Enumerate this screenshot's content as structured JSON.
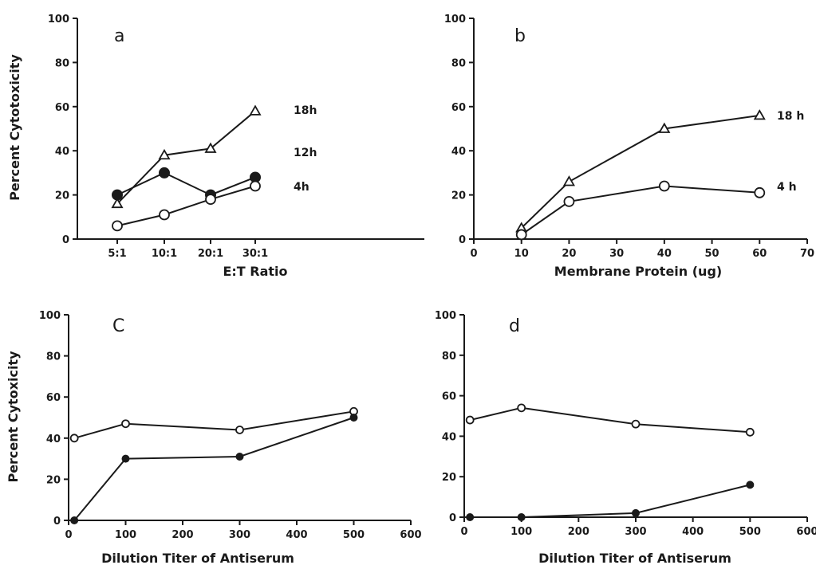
{
  "chart_data": [
    {
      "type": "line",
      "panel_label": "a",
      "xlabel": "E:T Ratio",
      "ylabel": "Percent Cytotoxicity",
      "x_axis": "categorical",
      "categories": [
        "5:1",
        "10:1",
        "20:1",
        "30:1"
      ],
      "ylim": [
        0,
        100
      ],
      "yticks": [
        0,
        20,
        40,
        60,
        80,
        100
      ],
      "grid": false,
      "series": [
        {
          "name": "18h",
          "marker": "triangle-open",
          "values": [
            16,
            38,
            41,
            58
          ]
        },
        {
          "name": "12h",
          "marker": "circle-filled",
          "values": [
            20,
            30,
            20,
            28
          ]
        },
        {
          "name": "4h",
          "marker": "circle-open",
          "values": [
            6,
            11,
            18,
            24
          ]
        }
      ]
    },
    {
      "type": "line",
      "panel_label": "b",
      "xlabel": "Membrane Protein (ug)",
      "ylabel": "",
      "x_axis": "numeric",
      "xlim": [
        0,
        70
      ],
      "xticks": [
        0,
        10,
        20,
        30,
        40,
        50,
        60,
        70
      ],
      "ylim": [
        0,
        100
      ],
      "yticks": [
        0,
        20,
        40,
        60,
        80,
        100
      ],
      "grid": false,
      "series": [
        {
          "name": "18 h",
          "marker": "triangle-open",
          "x": [
            10,
            20,
            40,
            60
          ],
          "values": [
            5,
            26,
            50,
            56
          ]
        },
        {
          "name": "4 h",
          "marker": "circle-open",
          "x": [
            10,
            20,
            40,
            60
          ],
          "values": [
            2,
            17,
            24,
            21
          ]
        }
      ]
    },
    {
      "type": "line",
      "panel_label": "C",
      "xlabel": "Dilution Titer of Antiserum",
      "ylabel": "Percent Cytoxicity",
      "x_axis": "numeric",
      "xlim": [
        0,
        600
      ],
      "xticks": [
        0,
        100,
        200,
        300,
        400,
        500,
        600
      ],
      "ylim": [
        0,
        100
      ],
      "yticks": [
        0,
        20,
        40,
        60,
        80,
        100
      ],
      "grid": false,
      "series": [
        {
          "marker": "circle-open",
          "x": [
            10,
            100,
            300,
            500
          ],
          "values": [
            40,
            47,
            44,
            53
          ]
        },
        {
          "marker": "circle-filled",
          "x": [
            10,
            100,
            300,
            500
          ],
          "values": [
            0,
            30,
            31,
            50
          ]
        }
      ]
    },
    {
      "type": "line",
      "panel_label": "d",
      "xlabel": "Dilution Titer of Antiserum",
      "ylabel": "",
      "x_axis": "numeric",
      "xlim": [
        0,
        600
      ],
      "xticks": [
        0,
        100,
        200,
        300,
        400,
        500,
        600
      ],
      "ylim": [
        0,
        100
      ],
      "yticks": [
        0,
        20,
        40,
        60,
        80,
        100
      ],
      "grid": false,
      "series": [
        {
          "marker": "circle-open",
          "x": [
            10,
            100,
            300,
            500
          ],
          "values": [
            48,
            54,
            46,
            42
          ]
        },
        {
          "marker": "circle-filled",
          "x": [
            10,
            100,
            300,
            500
          ],
          "values": [
            0,
            0,
            2,
            16
          ]
        }
      ]
    }
  ]
}
